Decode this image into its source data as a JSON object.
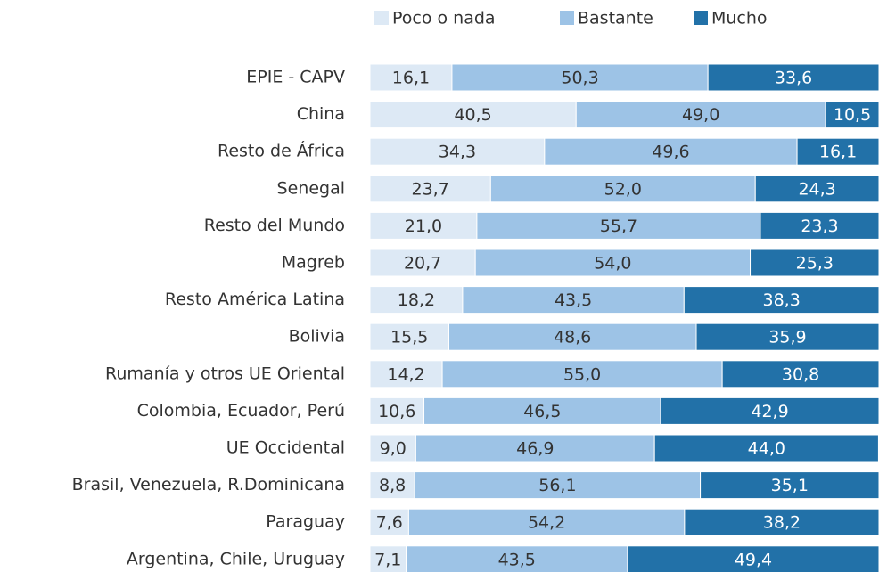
{
  "chart_data": {
    "type": "stacked-bar-horizontal",
    "categories": [
      "EPIE - CAPV",
      "China",
      "Resto de África",
      "Senegal",
      "Resto del Mundo",
      "Magreb",
      "Resto América Latina",
      "Bolivia",
      "Rumanía y otros UE Oriental",
      "Colombia, Ecuador, Perú",
      "UE Occidental",
      "Brasil, Venezuela, R.Dominicana",
      "Paraguay",
      "Argentina, Chile, Uruguay"
    ],
    "xlim": [
      0,
      100
    ],
    "legend": "top",
    "series": [
      {
        "name": "Poco o nada",
        "color": "#dde9f5",
        "label_color": "#333333",
        "values": [
          16.1,
          40.5,
          34.3,
          23.7,
          21.0,
          20.7,
          18.2,
          15.5,
          14.2,
          10.6,
          9.0,
          8.8,
          7.6,
          7.1
        ],
        "value_labels": [
          "16,1",
          "40,5",
          "34,3",
          "23,7",
          "21,0",
          "20,7",
          "18,2",
          "15,5",
          "14,2",
          "10,6",
          "9,0",
          "8,8",
          "7,6",
          "7,1"
        ]
      },
      {
        "name": "Bastante",
        "color": "#9dc3e6",
        "label_color": "#333333",
        "values": [
          50.3,
          49.0,
          49.6,
          52.0,
          55.7,
          54.0,
          43.5,
          48.6,
          55.0,
          46.5,
          46.9,
          56.1,
          54.2,
          43.5
        ],
        "value_labels": [
          "50,3",
          "49,0",
          "49,6",
          "52,0",
          "55,7",
          "54,0",
          "43,5",
          "48,6",
          "55,0",
          "46,5",
          "46,9",
          "56,1",
          "54,2",
          "43,5"
        ]
      },
      {
        "name": "Mucho",
        "color": "#2271a8",
        "label_color": "#ffffff",
        "values": [
          33.6,
          10.5,
          16.1,
          24.3,
          23.3,
          25.3,
          38.3,
          35.9,
          30.8,
          42.9,
          44.0,
          35.1,
          38.2,
          49.4
        ],
        "value_labels": [
          "33,6",
          "10,5",
          "16,1",
          "24,3",
          "23,3",
          "25,3",
          "38,3",
          "35,9",
          "30,8",
          "42,9",
          "44,0",
          "35,1",
          "38,2",
          "49,4"
        ]
      }
    ]
  }
}
